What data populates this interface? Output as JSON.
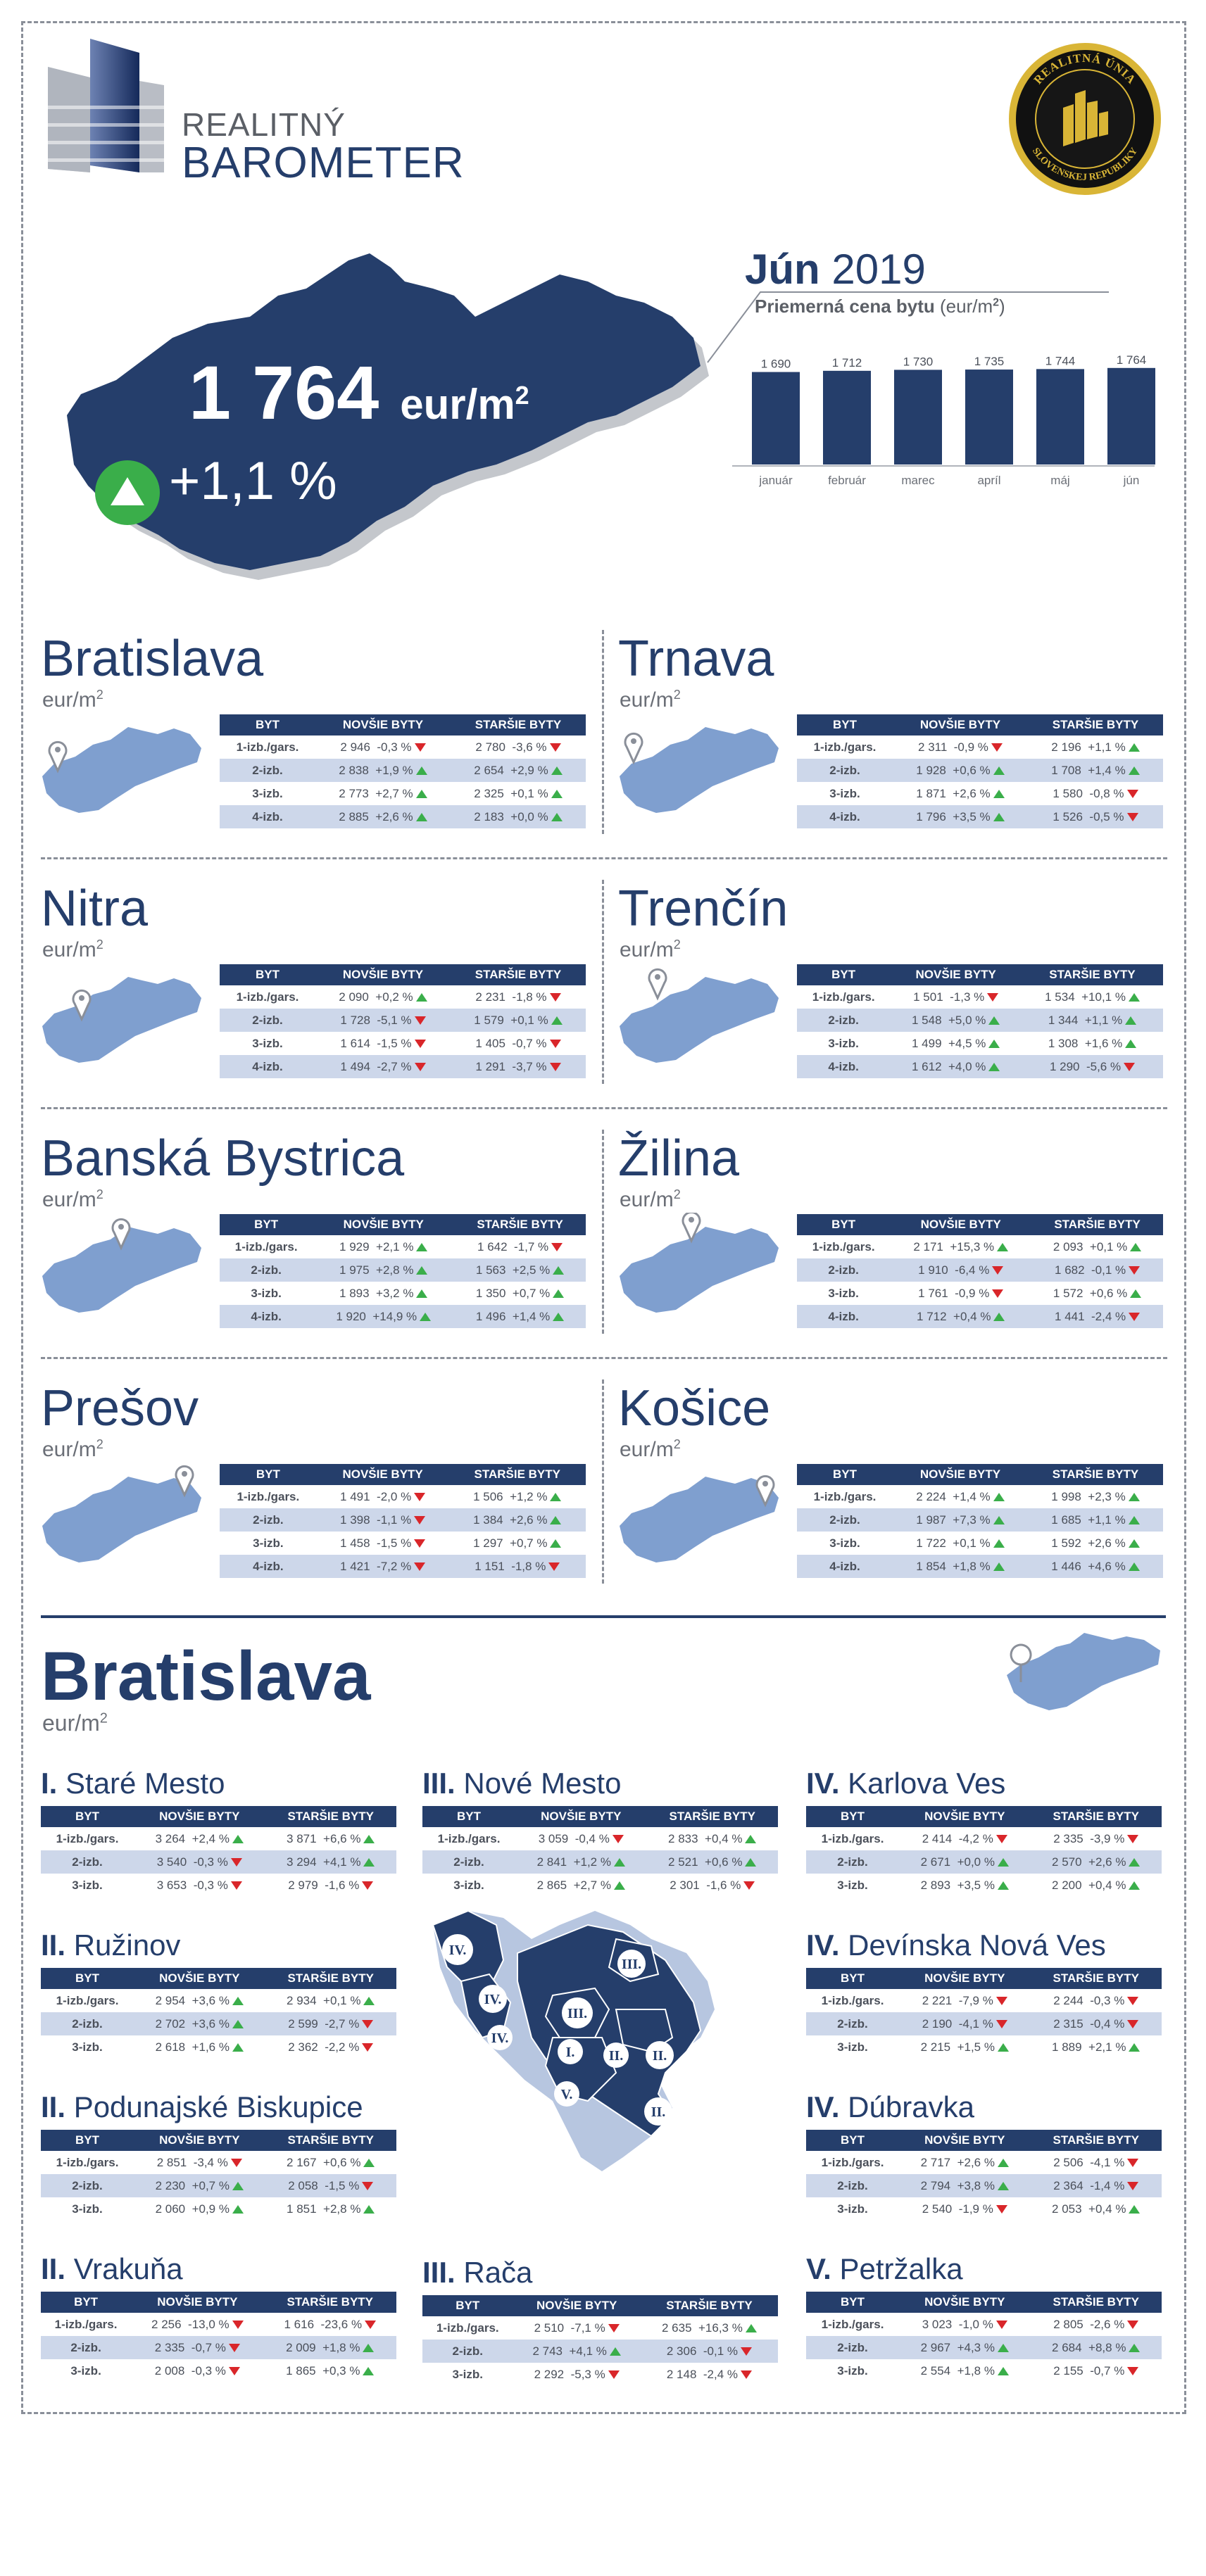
{
  "header": {
    "title_line1": "REALITNÝ",
    "title_line2": "BAROMETER",
    "seal_top": "REALITNÁ ÚNIA",
    "seal_bottom": "SLOVENSKEJ REPUBLIKY"
  },
  "hero": {
    "price": "1 764",
    "unit": "eur/m",
    "unit_sup": "2",
    "change": "+1,1 %",
    "month": "Jún",
    "year": "2019",
    "subtitle_bold": "Priemerná cena bytu",
    "subtitle_unit": "(eur/m",
    "subtitle_sup": "2",
    "subtitle_close": ")"
  },
  "chart_data": {
    "type": "bar",
    "categories": [
      "január",
      "február",
      "marec",
      "apríl",
      "máj",
      "jún"
    ],
    "values": [
      1690,
      1712,
      1730,
      1735,
      1744,
      1764
    ],
    "value_labels": [
      "1 690",
      "1 712",
      "1 730",
      "1 735",
      "1 744",
      "1 764"
    ],
    "title": "Priemerná cena bytu (eur/m2)",
    "ylim": [
      0,
      1800
    ],
    "color": "#253e6b"
  },
  "table_headers": [
    "BYT",
    "NOVŠIE BYTY",
    "STARŠIE BYTY"
  ],
  "regions": [
    {
      "name": "Bratislava",
      "unit": "eur/m",
      "sup": "2",
      "rows": [
        {
          "label": "1-izb./gars.",
          "new": "2 946",
          "new_ch": "-0,3 %",
          "new_dir": "down",
          "old": "2 780",
          "old_ch": "-3,6 %",
          "old_dir": "down"
        },
        {
          "label": "2-izb.",
          "new": "2 838",
          "new_ch": "+1,9 %",
          "new_dir": "up",
          "old": "2 654",
          "old_ch": "+2,9 %",
          "old_dir": "up"
        },
        {
          "label": "3-izb.",
          "new": "2 773",
          "new_ch": "+2,7 %",
          "new_dir": "up",
          "old": "2 325",
          "old_ch": "+0,1 %",
          "old_dir": "up"
        },
        {
          "label": "4-izb.",
          "new": "2 885",
          "new_ch": "+2,6 %",
          "new_dir": "up",
          "old": "2 183",
          "old_ch": "+0,0 %",
          "old_dir": "up"
        }
      ]
    },
    {
      "name": "Trnava",
      "unit": "eur/m",
      "sup": "2",
      "rows": [
        {
          "label": "1-izb./gars.",
          "new": "2 311",
          "new_ch": "-0,9 %",
          "new_dir": "down",
          "old": "2 196",
          "old_ch": "+1,1 %",
          "old_dir": "up"
        },
        {
          "label": "2-izb.",
          "new": "1 928",
          "new_ch": "+0,6 %",
          "new_dir": "up",
          "old": "1 708",
          "old_ch": "+1,4 %",
          "old_dir": "up"
        },
        {
          "label": "3-izb.",
          "new": "1 871",
          "new_ch": "+2,6 %",
          "new_dir": "up",
          "old": "1 580",
          "old_ch": "-0,8 %",
          "old_dir": "down"
        },
        {
          "label": "4-izb.",
          "new": "1 796",
          "new_ch": "+3,5 %",
          "new_dir": "up",
          "old": "1 526",
          "old_ch": "-0,5 %",
          "old_dir": "down"
        }
      ]
    },
    {
      "name": "Nitra",
      "unit": "eur/m",
      "sup": "2",
      "rows": [
        {
          "label": "1-izb./gars.",
          "new": "2 090",
          "new_ch": "+0,2 %",
          "new_dir": "up",
          "old": "2 231",
          "old_ch": "-1,8 %",
          "old_dir": "down"
        },
        {
          "label": "2-izb.",
          "new": "1 728",
          "new_ch": "-5,1 %",
          "new_dir": "down",
          "old": "1 579",
          "old_ch": "+0,1 %",
          "old_dir": "up"
        },
        {
          "label": "3-izb.",
          "new": "1 614",
          "new_ch": "-1,5 %",
          "new_dir": "down",
          "old": "1 405",
          "old_ch": "-0,7 %",
          "old_dir": "down"
        },
        {
          "label": "4-izb.",
          "new": "1 494",
          "new_ch": "-2,7 %",
          "new_dir": "down",
          "old": "1 291",
          "old_ch": "-3,7 %",
          "old_dir": "down"
        }
      ]
    },
    {
      "name": "Trenčín",
      "unit": "eur/m",
      "sup": "2",
      "rows": [
        {
          "label": "1-izb./gars.",
          "new": "1 501",
          "new_ch": "-1,3 %",
          "new_dir": "down",
          "old": "1 534",
          "old_ch": "+10,1 %",
          "old_dir": "up"
        },
        {
          "label": "2-izb.",
          "new": "1 548",
          "new_ch": "+5,0 %",
          "new_dir": "up",
          "old": "1 344",
          "old_ch": "+1,1 %",
          "old_dir": "up"
        },
        {
          "label": "3-izb.",
          "new": "1 499",
          "new_ch": "+4,5 %",
          "new_dir": "up",
          "old": "1 308",
          "old_ch": "+1,6 %",
          "old_dir": "up"
        },
        {
          "label": "4-izb.",
          "new": "1 612",
          "new_ch": "+4,0 %",
          "new_dir": "up",
          "old": "1 290",
          "old_ch": "-5,6 %",
          "old_dir": "down"
        }
      ]
    },
    {
      "name": "Banská Bystrica",
      "unit": "eur/m",
      "sup": "2",
      "rows": [
        {
          "label": "1-izb./gars.",
          "new": "1 929",
          "new_ch": "+2,1 %",
          "new_dir": "up",
          "old": "1 642",
          "old_ch": "-1,7 %",
          "old_dir": "down"
        },
        {
          "label": "2-izb.",
          "new": "1 975",
          "new_ch": "+2,8 %",
          "new_dir": "up",
          "old": "1 563",
          "old_ch": "+2,5 %",
          "old_dir": "up"
        },
        {
          "label": "3-izb.",
          "new": "1 893",
          "new_ch": "+3,2 %",
          "new_dir": "up",
          "old": "1 350",
          "old_ch": "+0,7 %",
          "old_dir": "up"
        },
        {
          "label": "4-izb.",
          "new": "1 920",
          "new_ch": "+14,9 %",
          "new_dir": "up",
          "old": "1 496",
          "old_ch": "+1,4 %",
          "old_dir": "up"
        }
      ]
    },
    {
      "name": "Žilina",
      "unit": "eur/m",
      "sup": "2",
      "rows": [
        {
          "label": "1-izb./gars.",
          "new": "2 171",
          "new_ch": "+15,3 %",
          "new_dir": "up",
          "old": "2 093",
          "old_ch": "+0,1 %",
          "old_dir": "up"
        },
        {
          "label": "2-izb.",
          "new": "1 910",
          "new_ch": "-6,4 %",
          "new_dir": "down",
          "old": "1 682",
          "old_ch": "-0,1 %",
          "old_dir": "down"
        },
        {
          "label": "3-izb.",
          "new": "1 761",
          "new_ch": "-0,9 %",
          "new_dir": "down",
          "old": "1 572",
          "old_ch": "+0,6 %",
          "old_dir": "up"
        },
        {
          "label": "4-izb.",
          "new": "1 712",
          "new_ch": "+0,4 %",
          "new_dir": "up",
          "old": "1 441",
          "old_ch": "-2,4 %",
          "old_dir": "down"
        }
      ]
    },
    {
      "name": "Prešov",
      "unit": "eur/m",
      "sup": "2",
      "rows": [
        {
          "label": "1-izb./gars.",
          "new": "1 491",
          "new_ch": "-2,0 %",
          "new_dir": "down",
          "old": "1 506",
          "old_ch": "+1,2 %",
          "old_dir": "up"
        },
        {
          "label": "2-izb.",
          "new": "1 398",
          "new_ch": "-1,1 %",
          "new_dir": "down",
          "old": "1 384",
          "old_ch": "+2,6 %",
          "old_dir": "up"
        },
        {
          "label": "3-izb.",
          "new": "1 458",
          "new_ch": "-1,5 %",
          "new_dir": "down",
          "old": "1 297",
          "old_ch": "+0,7 %",
          "old_dir": "up"
        },
        {
          "label": "4-izb.",
          "new": "1 421",
          "new_ch": "-7,2 %",
          "new_dir": "down",
          "old": "1 151",
          "old_ch": "-1,8 %",
          "old_dir": "down"
        }
      ]
    },
    {
      "name": "Košice",
      "unit": "eur/m",
      "sup": "2",
      "rows": [
        {
          "label": "1-izb./gars.",
          "new": "2 224",
          "new_ch": "+1,4 %",
          "new_dir": "up",
          "old": "1 998",
          "old_ch": "+2,3 %",
          "old_dir": "up"
        },
        {
          "label": "2-izb.",
          "new": "1 987",
          "new_ch": "+7,3 %",
          "new_dir": "up",
          "old": "1 685",
          "old_ch": "+1,1 %",
          "old_dir": "up"
        },
        {
          "label": "3-izb.",
          "new": "1 722",
          "new_ch": "+0,1 %",
          "new_dir": "up",
          "old": "1 592",
          "old_ch": "+2,6 %",
          "old_dir": "up"
        },
        {
          "label": "4-izb.",
          "new": "1 854",
          "new_ch": "+1,8 %",
          "new_dir": "up",
          "old": "1 446",
          "old_ch": "+4,6 %",
          "old_dir": "up"
        }
      ]
    }
  ],
  "ba_section": {
    "title": "Bratislava",
    "unit": "eur/m",
    "sup": "2",
    "map_labels": [
      "IV.",
      "IV.",
      "IV.",
      "III.",
      "III.",
      "I.",
      "II.",
      "II.",
      "V.",
      "II."
    ]
  },
  "districts": [
    {
      "num": "I.",
      "name": "Staré Mesto",
      "rows": [
        {
          "label": "1-izb./gars.",
          "new": "3 264",
          "new_ch": "+2,4 %",
          "new_dir": "up",
          "old": "3 871",
          "old_ch": "+6,6 %",
          "old_dir": "up"
        },
        {
          "label": "2-izb.",
          "new": "3 540",
          "new_ch": "-0,3 %",
          "new_dir": "down",
          "old": "3 294",
          "old_ch": "+4,1 %",
          "old_dir": "up"
        },
        {
          "label": "3-izb.",
          "new": "3 653",
          "new_ch": "-0,3 %",
          "new_dir": "down",
          "old": "2 979",
          "old_ch": "-1,6 %",
          "old_dir": "down"
        }
      ]
    },
    {
      "num": "III.",
      "name": "Nové Mesto",
      "rows": [
        {
          "label": "1-izb./gars.",
          "new": "3 059",
          "new_ch": "-0,4 %",
          "new_dir": "down",
          "old": "2 833",
          "old_ch": "+0,4 %",
          "old_dir": "up"
        },
        {
          "label": "2-izb.",
          "new": "2 841",
          "new_ch": "+1,2 %",
          "new_dir": "up",
          "old": "2 521",
          "old_ch": "+0,6 %",
          "old_dir": "up"
        },
        {
          "label": "3-izb.",
          "new": "2 865",
          "new_ch": "+2,7 %",
          "new_dir": "up",
          "old": "2 301",
          "old_ch": "-1,6 %",
          "old_dir": "down"
        }
      ]
    },
    {
      "num": "IV.",
      "name": "Karlova Ves",
      "rows": [
        {
          "label": "1-izb./gars.",
          "new": "2 414",
          "new_ch": "-4,2 %",
          "new_dir": "down",
          "old": "2 335",
          "old_ch": "-3,9 %",
          "old_dir": "down"
        },
        {
          "label": "2-izb.",
          "new": "2 671",
          "new_ch": "+0,0 %",
          "new_dir": "up",
          "old": "2 570",
          "old_ch": "+2,6 %",
          "old_dir": "up"
        },
        {
          "label": "3-izb.",
          "new": "2 893",
          "new_ch": "+3,5 %",
          "new_dir": "up",
          "old": "2 200",
          "old_ch": "+0,4 %",
          "old_dir": "up"
        }
      ]
    },
    {
      "num": "II.",
      "name": "Ružinov",
      "rows": [
        {
          "label": "1-izb./gars.",
          "new": "2 954",
          "new_ch": "+3,6 %",
          "new_dir": "up",
          "old": "2 934",
          "old_ch": "+0,1 %",
          "old_dir": "up"
        },
        {
          "label": "2-izb.",
          "new": "2 702",
          "new_ch": "+3,6 %",
          "new_dir": "up",
          "old": "2 599",
          "old_ch": "-2,7 %",
          "old_dir": "down"
        },
        {
          "label": "3-izb.",
          "new": "2 618",
          "new_ch": "+1,6 %",
          "new_dir": "up",
          "old": "2 362",
          "old_ch": "-2,2 %",
          "old_dir": "down"
        }
      ]
    },
    {
      "num": "IV.",
      "name": "Devínska Nová Ves",
      "rows": [
        {
          "label": "1-izb./gars.",
          "new": "2 221",
          "new_ch": "-7,9 %",
          "new_dir": "down",
          "old": "2 244",
          "old_ch": "-0,3 %",
          "old_dir": "down"
        },
        {
          "label": "2-izb.",
          "new": "2 190",
          "new_ch": "-4,1 %",
          "new_dir": "down",
          "old": "2 315",
          "old_ch": "-0,4 %",
          "old_dir": "down"
        },
        {
          "label": "3-izb.",
          "new": "2 215",
          "new_ch": "+1,5 %",
          "new_dir": "up",
          "old": "1 889",
          "old_ch": "+2,1 %",
          "old_dir": "up"
        }
      ]
    },
    {
      "num": "II.",
      "name": "Podunajské Biskupice",
      "rows": [
        {
          "label": "1-izb./gars.",
          "new": "2 851",
          "new_ch": "-3,4 %",
          "new_dir": "down",
          "old": "2 167",
          "old_ch": "+0,6 %",
          "old_dir": "up"
        },
        {
          "label": "2-izb.",
          "new": "2 230",
          "new_ch": "+0,7 %",
          "new_dir": "up",
          "old": "2 058",
          "old_ch": "-1,5 %",
          "old_dir": "down"
        },
        {
          "label": "3-izb.",
          "new": "2 060",
          "new_ch": "+0,9 %",
          "new_dir": "up",
          "old": "1 851",
          "old_ch": "+2,8 %",
          "old_dir": "up"
        }
      ]
    },
    {
      "num": "IV.",
      "name": "Dúbravka",
      "rows": [
        {
          "label": "1-izb./gars.",
          "new": "2 717",
          "new_ch": "+2,6 %",
          "new_dir": "up",
          "old": "2 506",
          "old_ch": "-4,1 %",
          "old_dir": "down"
        },
        {
          "label": "2-izb.",
          "new": "2 794",
          "new_ch": "+3,8 %",
          "new_dir": "up",
          "old": "2 364",
          "old_ch": "-1,4 %",
          "old_dir": "down"
        },
        {
          "label": "3-izb.",
          "new": "2 540",
          "new_ch": "-1,9 %",
          "new_dir": "down",
          "old": "2 053",
          "old_ch": "+0,4 %",
          "old_dir": "up"
        }
      ]
    },
    {
      "num": "II.",
      "name": "Vrakuňa",
      "rows": [
        {
          "label": "1-izb./gars.",
          "new": "2 256",
          "new_ch": "-13,0 %",
          "new_dir": "down",
          "old": "1 616",
          "old_ch": "-23,6 %",
          "old_dir": "down"
        },
        {
          "label": "2-izb.",
          "new": "2 335",
          "new_ch": "-0,7 %",
          "new_dir": "down",
          "old": "2 009",
          "old_ch": "+1,8 %",
          "old_dir": "up"
        },
        {
          "label": "3-izb.",
          "new": "2 008",
          "new_ch": "-0,3 %",
          "new_dir": "down",
          "old": "1 865",
          "old_ch": "+0,3 %",
          "old_dir": "up"
        }
      ]
    },
    {
      "num": "III.",
      "name": "Rača",
      "rows": [
        {
          "label": "1-izb./gars.",
          "new": "2 510",
          "new_ch": "-7,1 %",
          "new_dir": "down",
          "old": "2 635",
          "old_ch": "+16,3 %",
          "old_dir": "up"
        },
        {
          "label": "2-izb.",
          "new": "2 743",
          "new_ch": "+4,1 %",
          "new_dir": "up",
          "old": "2 306",
          "old_ch": "-0,1 %",
          "old_dir": "down"
        },
        {
          "label": "3-izb.",
          "new": "2 292",
          "new_ch": "-5,3 %",
          "new_dir": "down",
          "old": "2 148",
          "old_ch": "-2,4 %",
          "old_dir": "down"
        }
      ]
    },
    {
      "num": "V.",
      "name": "Petržalka",
      "rows": [
        {
          "label": "1-izb./gars.",
          "new": "3 023",
          "new_ch": "-1,0 %",
          "new_dir": "down",
          "old": "2 805",
          "old_ch": "-2,6 %",
          "old_dir": "down"
        },
        {
          "label": "2-izb.",
          "new": "2 967",
          "new_ch": "+4,3 %",
          "new_dir": "up",
          "old": "2 684",
          "old_ch": "+8,8 %",
          "old_dir": "up"
        },
        {
          "label": "3-izb.",
          "new": "2 554",
          "new_ch": "+1,8 %",
          "new_dir": "up",
          "old": "2 155",
          "old_ch": "-0,7 %",
          "old_dir": "down"
        }
      ]
    }
  ]
}
